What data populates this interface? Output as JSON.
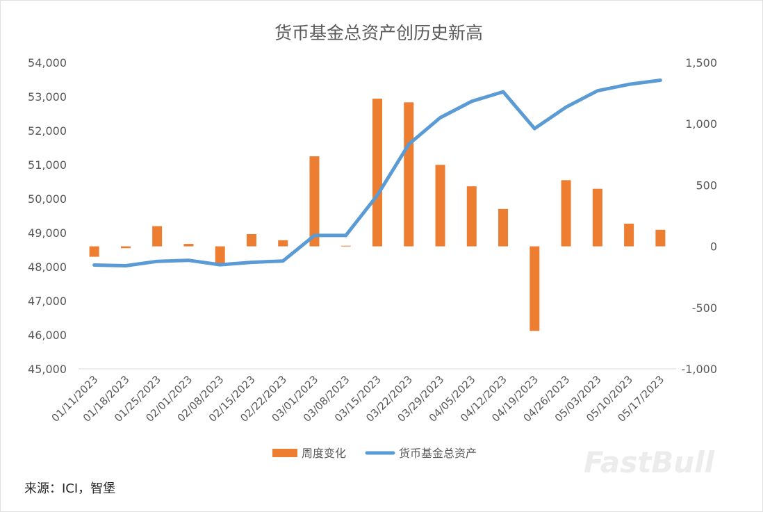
{
  "chart_data": {
    "type": "bar+line",
    "title": "货币基金总资产创历史新高",
    "categories": [
      "01/11/2023",
      "01/18/2023",
      "01/25/2023",
      "02/01/2023",
      "02/08/2023",
      "02/15/2023",
      "02/22/2023",
      "03/01/2023",
      "03/08/2023",
      "03/15/2023",
      "03/22/2023",
      "03/29/2023",
      "04/05/2023",
      "04/12/2023",
      "04/19/2023",
      "04/26/2023",
      "05/03/2023",
      "05/10/2023",
      "05/17/2023"
    ],
    "series": [
      {
        "name": "周度变化",
        "type": "bar",
        "axis": "right",
        "color": "#ED7D31",
        "values": [
          -85,
          -15,
          165,
          20,
          -150,
          100,
          50,
          735,
          5,
          1205,
          1175,
          665,
          490,
          305,
          -690,
          540,
          470,
          185,
          135
        ]
      },
      {
        "name": "货币基金总资产",
        "type": "line",
        "axis": "left",
        "color": "#5B9BD5",
        "values": [
          48050,
          48030,
          48160,
          48190,
          48060,
          48130,
          48170,
          48920,
          48920,
          50100,
          51600,
          52380,
          52860,
          53140,
          52060,
          52690,
          53170,
          53360,
          53480
        ]
      }
    ],
    "y_left": {
      "ylim": [
        45000,
        54000
      ],
      "ticks": [
        "45,000",
        "46,000",
        "47,000",
        "48,000",
        "49,000",
        "50,000",
        "51,000",
        "52,000",
        "53,000",
        "54,000"
      ]
    },
    "y_right": {
      "ylim": [
        -1000,
        1500
      ],
      "ticks": [
        "-1,000",
        "-500",
        "0",
        "500",
        "1,000",
        "1,500"
      ]
    },
    "legend": {
      "placement": "bottom",
      "items": [
        "周度变化",
        "货币基金总资产"
      ]
    },
    "grid": false
  },
  "source_note": "来源：ICI，智堡",
  "watermark": "FastBull"
}
